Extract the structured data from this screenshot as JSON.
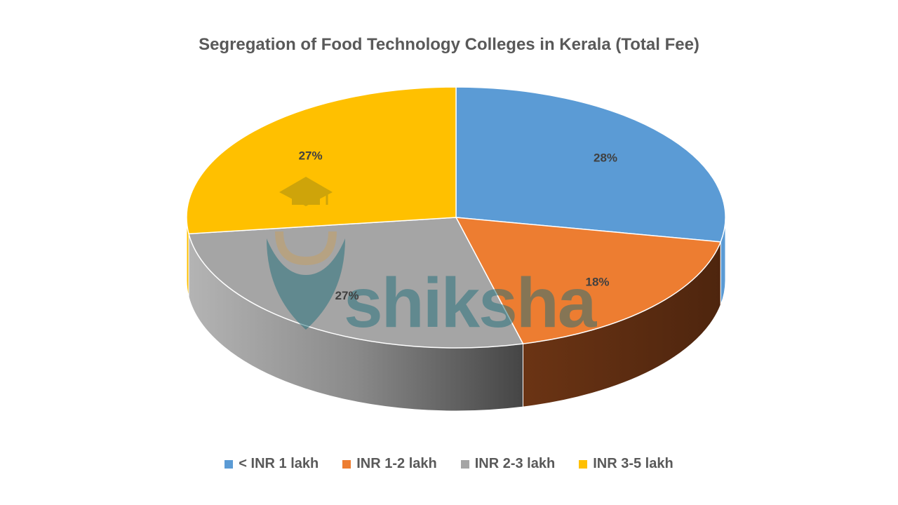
{
  "chart_data": {
    "type": "pie",
    "title": "Segregation of Food Technology Colleges in Kerala (Total Fee)",
    "categories": [
      "< INR 1 lakh",
      "INR 1-2 lakh",
      "INR 2-3 lakh",
      "INR 3-5 lakh"
    ],
    "values": [
      28,
      18,
      27,
      27
    ],
    "data_labels": [
      "28%",
      "18%",
      "27%",
      "27%"
    ],
    "colors": [
      "#5B9BD5",
      "#ED7D31",
      "#A5A5A5",
      "#FFC000"
    ],
    "legend_position": "bottom",
    "style": "3d"
  },
  "watermark": {
    "text": "shiksha",
    "icon": "graduation-cap-icon",
    "color": "#1F6F7A"
  }
}
